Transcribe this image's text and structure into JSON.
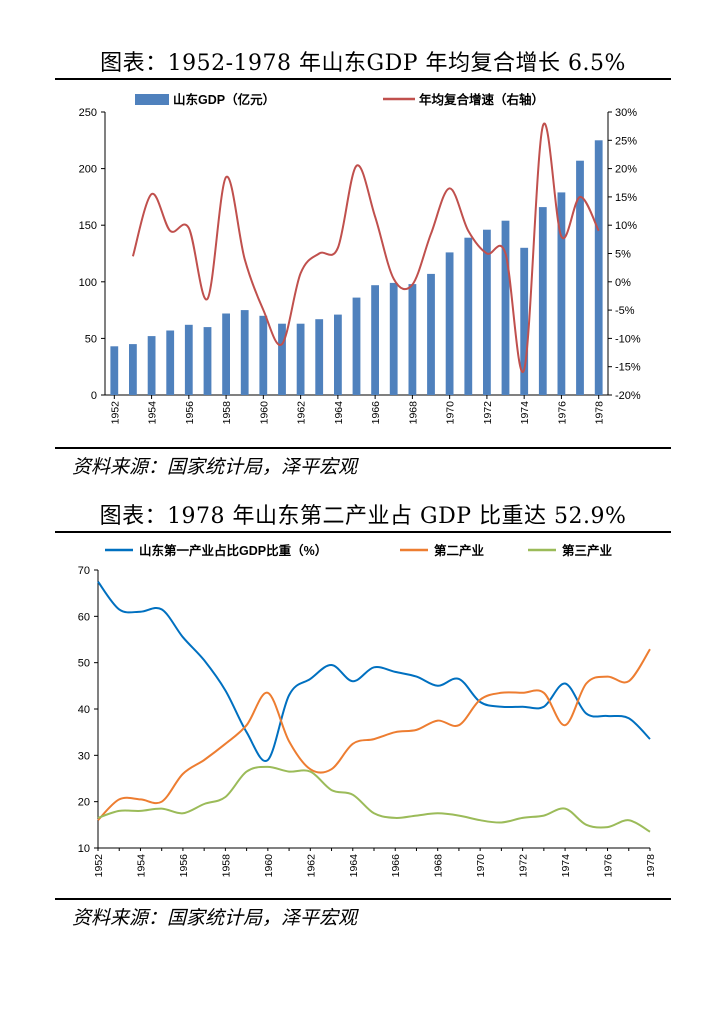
{
  "chart1": {
    "title": "图表：1952-1978 年山东GDP 年均复合增长 6.5%",
    "source": "资料来源：国家统计局，泽平宏观",
    "chart_data": {
      "type": "bar+line",
      "title": "图表：1952-1978 年山东GDP 年均复合增长 6.5%",
      "categories": [
        "1952",
        "1953",
        "1954",
        "1955",
        "1956",
        "1957",
        "1958",
        "1959",
        "1960",
        "1961",
        "1962",
        "1963",
        "1964",
        "1965",
        "1966",
        "1967",
        "1968",
        "1969",
        "1970",
        "1971",
        "1972",
        "1973",
        "1974",
        "1975",
        "1976",
        "1977",
        "1978"
      ],
      "x_tick_labels": [
        "1952",
        "1954",
        "1956",
        "1958",
        "1960",
        "1962",
        "1964",
        "1966",
        "1968",
        "1970",
        "1972",
        "1974",
        "1976",
        "1978"
      ],
      "series": [
        {
          "name": "山东GDP（亿元）",
          "type": "bar",
          "axis": "left",
          "color": "#4f81bd",
          "values": [
            43,
            45,
            52,
            57,
            62,
            60,
            72,
            75,
            70,
            63,
            63,
            67,
            71,
            86,
            97,
            99,
            98,
            107,
            126,
            139,
            146,
            154,
            130,
            166,
            179,
            207,
            225
          ]
        },
        {
          "name": "年均复合增速（右轴）",
          "type": "line",
          "axis": "right",
          "color": "#c0504d",
          "values": [
            null,
            4.5,
            15.5,
            9,
            9.5,
            -3,
            18.5,
            4,
            -5,
            -11,
            1.5,
            5,
            6,
            20.5,
            11.5,
            0.5,
            -0.5,
            8.5,
            16.5,
            9,
            5,
            5,
            -15.5,
            27.5,
            8,
            15,
            9
          ]
        }
      ],
      "ylim_left": [
        0,
        250
      ],
      "yticks_left": [
        0,
        50,
        100,
        150,
        200,
        250
      ],
      "ylim_right": [
        -20,
        30
      ],
      "yticks_right": [
        "-20%",
        "-15%",
        "-10%",
        "-5%",
        "0%",
        "5%",
        "10%",
        "15%",
        "20%",
        "25%",
        "30%"
      ],
      "legend": "top",
      "grid": false
    }
  },
  "chart2": {
    "title": "图表：1978 年山东第二产业占 GDP 比重达 52.9%",
    "source": "资料来源：国家统计局，泽平宏观",
    "chart_data": {
      "type": "line",
      "title": "图表：1978 年山东第二产业占 GDP 比重达 52.9%",
      "x": [
        "1952",
        "1953",
        "1954",
        "1955",
        "1956",
        "1957",
        "1958",
        "1959",
        "1960",
        "1961",
        "1962",
        "1963",
        "1964",
        "1965",
        "1966",
        "1967",
        "1968",
        "1969",
        "1970",
        "1971",
        "1972",
        "1973",
        "1974",
        "1975",
        "1976",
        "1977",
        "1978"
      ],
      "x_tick_labels": [
        "1952",
        "1954",
        "1956",
        "1958",
        "1960",
        "1962",
        "1964",
        "1966",
        "1968",
        "1970",
        "1972",
        "1974",
        "1976",
        "1978"
      ],
      "series": [
        {
          "name": "山东第一产业占比GDP比重（%）",
          "color": "#0070c0",
          "values": [
            67.5,
            61.5,
            61,
            61.5,
            55.5,
            50.5,
            44,
            35,
            29,
            43,
            46.5,
            49.5,
            46,
            49,
            48,
            47,
            45,
            46.5,
            41.5,
            40.5,
            40.5,
            40.5,
            45.5,
            39,
            38.5,
            38,
            33.5
          ]
        },
        {
          "name": "第二产业",
          "color": "#ed7d31",
          "values": [
            16,
            20.5,
            20.5,
            20,
            26,
            29,
            32.5,
            36.5,
            43.5,
            33,
            27,
            27,
            32.5,
            33.5,
            35,
            35.5,
            37.5,
            36.5,
            42,
            43.5,
            43.5,
            43.5,
            36.5,
            45.5,
            47,
            46,
            52.9
          ]
        },
        {
          "name": "第三产业",
          "color": "#9bbb59",
          "values": [
            16.5,
            18,
            18,
            18.5,
            17.5,
            19.5,
            21,
            26.5,
            27.5,
            26.5,
            26.5,
            22.5,
            21.5,
            17.5,
            16.5,
            17,
            17.5,
            17,
            16,
            15.5,
            16.5,
            17,
            18.5,
            15,
            14.5,
            16,
            13.5
          ]
        }
      ],
      "ylim": [
        10,
        70
      ],
      "yticks": [
        10,
        20,
        30,
        40,
        50,
        60,
        70
      ],
      "legend": "top",
      "grid": false
    }
  }
}
